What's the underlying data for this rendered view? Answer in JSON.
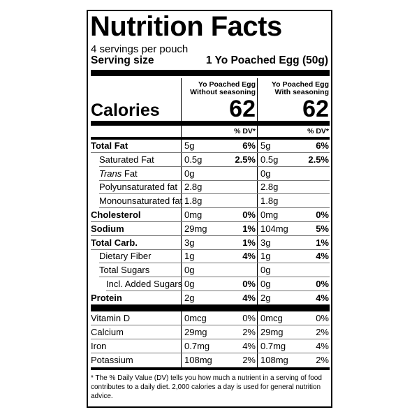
{
  "title": "Nutrition Facts",
  "servings": "4 servings per pouch",
  "serving_size_label": "Serving size",
  "serving_size_value": "1 Yo Poached Egg (50g)",
  "calories_label": "Calories",
  "dv_header": "% DV*",
  "columns": [
    {
      "name": "Yo Poached Egg",
      "subname": "Without seasoning",
      "calories": 62
    },
    {
      "name": "Yo Poached Egg",
      "subname": "With seasoning",
      "calories": 62
    }
  ],
  "rows": [
    {
      "label": "Total Fat",
      "bold": true,
      "indent": 0,
      "values": [
        {
          "amount": "5g",
          "dv": "6%"
        },
        {
          "amount": "5g",
          "dv": "6%"
        }
      ]
    },
    {
      "label": "Saturated Fat",
      "bold": false,
      "indent": 1,
      "values": [
        {
          "amount": "0.5g",
          "dv": "2.5%"
        },
        {
          "amount": "0.5g",
          "dv": "2.5%"
        }
      ]
    },
    {
      "label_italic": "Trans",
      "label": "Fat",
      "bold": false,
      "indent": 1,
      "values": [
        {
          "amount": "0g"
        },
        {
          "amount": "0g"
        }
      ]
    },
    {
      "label": "Polyunsaturated fat",
      "bold": false,
      "indent": 1,
      "values": [
        {
          "amount": "2.8g"
        },
        {
          "amount": "2.8g"
        }
      ]
    },
    {
      "label": "Monounsaturated fat",
      "bold": false,
      "indent": 1,
      "values": [
        {
          "amount": "1.8g"
        },
        {
          "amount": "1.8g"
        }
      ]
    },
    {
      "label": "Cholesterol",
      "bold": true,
      "indent": 0,
      "values": [
        {
          "amount": "0mg",
          "dv": "0%"
        },
        {
          "amount": "0mg",
          "dv": "0%"
        }
      ]
    },
    {
      "label": "Sodium",
      "bold": true,
      "indent": 0,
      "values": [
        {
          "amount": "29mg",
          "dv": "1%"
        },
        {
          "amount": "104mg",
          "dv": "5%"
        }
      ]
    },
    {
      "label": "Total Carb.",
      "bold": true,
      "indent": 0,
      "values": [
        {
          "amount": "3g",
          "dv": "1%"
        },
        {
          "amount": "3g",
          "dv": "1%"
        }
      ]
    },
    {
      "label": "Dietary Fiber",
      "bold": false,
      "indent": 1,
      "values": [
        {
          "amount": "1g",
          "dv": "4%"
        },
        {
          "amount": "1g",
          "dv": "4%"
        }
      ]
    },
    {
      "label": "Total Sugars",
      "bold": false,
      "indent": 1,
      "values": [
        {
          "amount": "0g"
        },
        {
          "amount": "0g"
        }
      ]
    },
    {
      "label": "Incl. Added Sugars",
      "bold": false,
      "indent": 2,
      "values": [
        {
          "amount": "0g",
          "dv": "0%"
        },
        {
          "amount": "0g",
          "dv": "0%"
        }
      ]
    },
    {
      "label": "Protein",
      "bold": true,
      "indent": 0,
      "values": [
        {
          "amount": "2g",
          "dv": "4%"
        },
        {
          "amount": "2g",
          "dv": "4%"
        }
      ]
    }
  ],
  "vitamin_rows": [
    {
      "label": "Vitamin D",
      "values": [
        {
          "amount": "0mcg",
          "dv": "0%"
        },
        {
          "amount": "0mcg",
          "dv": "0%"
        }
      ]
    },
    {
      "label": "Calcium",
      "values": [
        {
          "amount": "29mg",
          "dv": "2%"
        },
        {
          "amount": "29mg",
          "dv": "2%"
        }
      ]
    },
    {
      "label": "Iron",
      "values": [
        {
          "amount": "0.7mg",
          "dv": "4%"
        },
        {
          "amount": "0.7mg",
          "dv": "4%"
        }
      ]
    },
    {
      "label": "Potassium",
      "values": [
        {
          "amount": "108mg",
          "dv": "2%"
        },
        {
          "amount": "108mg",
          "dv": "2%"
        }
      ]
    }
  ],
  "footnote": "* The % Daily Value (DV) tells you how much a nutrient in a serving of food contributes to a daily diet. 2,000 calories a day is used for general nutrition advice."
}
